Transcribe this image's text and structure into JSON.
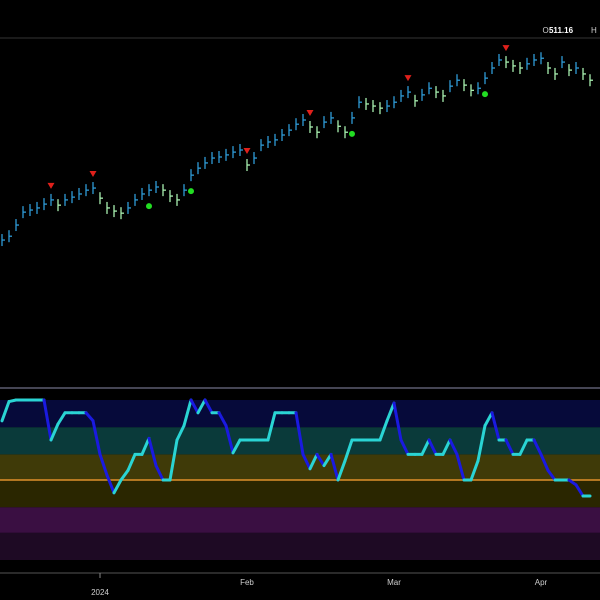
{
  "header": {
    "open_label": "O:",
    "open_value": "511.16",
    "high_label": "H"
  },
  "chart_data": [
    {
      "type": "ohlc",
      "categories": [
        null,
        null,
        null,
        null,
        null,
        null,
        null,
        null,
        null,
        null,
        null,
        null,
        null,
        null,
        "2024",
        null,
        null,
        null,
        null,
        null,
        null,
        null,
        null,
        null,
        null,
        null,
        null,
        null,
        null,
        null,
        null,
        null,
        null,
        null,
        null,
        "Feb",
        null,
        null,
        null,
        null,
        null,
        null,
        null,
        null,
        null,
        null,
        null,
        null,
        null,
        null,
        null,
        null,
        null,
        null,
        null,
        null,
        "Mar",
        null,
        null,
        null,
        null,
        null,
        null,
        null,
        null,
        null,
        null,
        null,
        null,
        null,
        null,
        null,
        null,
        null,
        null,
        null,
        null,
        "Apr",
        null,
        null,
        null,
        null,
        null,
        null,
        null
      ],
      "values": [
        470.0,
        471.1,
        474.3,
        478.0,
        478.6,
        479.2,
        480.3,
        481.5,
        480.0,
        481.5,
        482.3,
        483.2,
        484.3,
        484.9,
        482.0,
        479.2,
        478.3,
        477.7,
        479.2,
        481.5,
        483.2,
        484.3,
        485.2,
        484.3,
        482.6,
        481.5,
        484.3,
        488.6,
        490.6,
        492.1,
        493.5,
        493.8,
        494.4,
        495.2,
        495.8,
        491.5,
        493.5,
        497.2,
        498.1,
        498.7,
        500.1,
        501.5,
        503.2,
        504.4,
        502.4,
        500.9,
        503.8,
        505.0,
        502.6,
        500.9,
        505.0,
        509.5,
        509.0,
        508.4,
        507.8,
        508.4,
        509.5,
        511.3,
        512.4,
        509.9,
        511.6,
        513.5,
        512.4,
        511.3,
        514.1,
        515.8,
        514.4,
        512.9,
        513.5,
        516.4,
        519.3,
        521.6,
        521.0,
        519.9,
        519.3,
        520.5,
        521.6,
        522.1,
        519.3,
        517.6,
        521.0,
        518.7,
        519.3,
        517.6,
        515.8
      ],
      "ylim": [
        427.6,
        527.9
      ],
      "up_color": "#2f9bd6",
      "down_color": "#a8f0b0",
      "sell_signals": [
        7,
        13,
        35,
        44,
        58,
        72
      ],
      "sell_color": "#e0201b",
      "buy_signals": [
        21,
        27,
        50,
        69
      ],
      "buy_color": "#22dd22"
    },
    {
      "type": "line",
      "values": [
        87,
        99,
        100,
        100,
        100,
        100,
        100,
        75,
        85,
        92,
        92,
        92,
        92,
        87,
        66,
        53,
        42,
        50,
        56,
        66,
        66,
        76,
        59,
        50,
        50,
        75,
        84,
        100,
        92,
        100,
        92,
        92,
        84,
        67,
        75,
        75,
        75,
        75,
        75,
        92,
        92,
        92,
        92,
        66,
        57,
        66,
        59,
        66,
        50,
        62,
        75,
        75,
        75,
        75,
        75,
        87,
        98,
        75,
        66,
        66,
        66,
        75,
        66,
        66,
        75,
        66,
        50,
        50,
        62,
        84,
        92,
        75,
        75,
        66,
        66,
        75,
        75,
        66,
        56,
        50,
        50,
        50,
        47,
        40,
        40
      ],
      "ylim": [
        -7.5,
        107.5
      ],
      "rise_color": "#2ad4d4",
      "fall_color": "#1a1ae0",
      "bands": [
        {
          "from": 0,
          "to": 17,
          "color": "#1e0a24"
        },
        {
          "from": 17,
          "to": 33,
          "color": "#3a0f42"
        },
        {
          "from": 33,
          "to": 50,
          "color": "#2a2600"
        },
        {
          "from": 50,
          "to": 66,
          "color": "#3f3a08"
        },
        {
          "from": 66,
          "to": 83,
          "color": "#0a3a3a"
        },
        {
          "from": 83,
          "to": 100,
          "color": "#060a3a"
        }
      ],
      "midline": 50,
      "midline_color": "#e0902a"
    }
  ]
}
